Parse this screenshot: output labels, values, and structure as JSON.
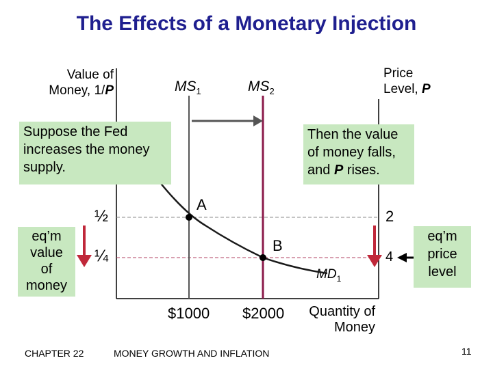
{
  "slide": {
    "title": "The Effects of a Monetary Injection",
    "footer_chapter": "CHAPTER 22",
    "footer_title": "MONEY GROWTH AND INFLATION",
    "page_number": "11"
  },
  "diagram": {
    "left_axis_label_line1": "Value of",
    "left_axis_label_line2": "Money, 1/",
    "left_axis_label_var": "P",
    "right_axis_label_line1": "Price",
    "right_axis_label_line2": "Level, ",
    "right_axis_label_var": "P",
    "x_axis_label_line1": "Quantity of",
    "x_axis_label_line2": "Money",
    "ms1_label": "MS",
    "ms1_sub": "1",
    "ms2_label": "MS",
    "ms2_sub": "2",
    "md_label": "MD",
    "md_sub": "1",
    "point_a": "A",
    "point_b": "B",
    "value_half": "½",
    "value_quarter": "¼",
    "price_2": "2",
    "price_4": "4",
    "quantity_1": "$1000",
    "quantity_2": "$2000",
    "callout_left": "Suppose the Fed increases the money supply.",
    "callout_right_line1": "Then the value",
    "callout_right_line2": "of money falls,",
    "callout_right_line3a": "and ",
    "callout_right_var": "P",
    "callout_right_line3b": " rises.",
    "left_eq_label_1": "eq’m",
    "left_eq_label_2": "value",
    "left_eq_label_3": "of",
    "left_eq_label_4": "money",
    "right_eq_label_1": "eq’m",
    "right_eq_label_2": "price",
    "right_eq_label_3": "level",
    "colors": {
      "title": "#1f1f8f",
      "supply_line": "#8b1a4a",
      "arrow_red": "#c0283a",
      "callout_bg": "#c8e8c0",
      "axis": "#000000"
    }
  }
}
